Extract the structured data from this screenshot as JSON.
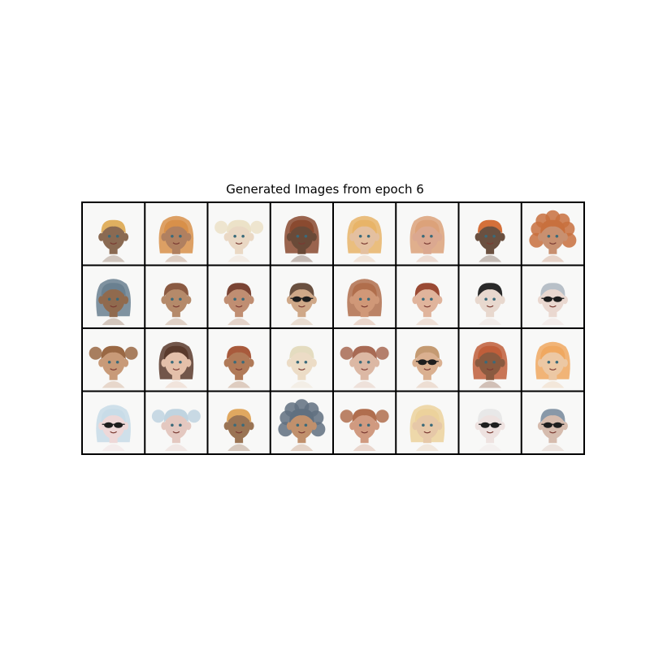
{
  "figure": {
    "title": "Generated Images from epoch 6",
    "rows": 4,
    "cols": 8
  },
  "cells": [
    {
      "skin": "#8a6a52",
      "hair": "#e0b060",
      "style": "short",
      "glasses": false
    },
    {
      "skin": "#b08060",
      "hair": "#d8904a",
      "style": "long",
      "glasses": false
    },
    {
      "skin": "#ead8c4",
      "hair": "#ece2c8",
      "style": "puffs",
      "glasses": false
    },
    {
      "skin": "#6a4a38",
      "hair": "#8a4a30",
      "style": "long",
      "glasses": false
    },
    {
      "skin": "#e4c0a0",
      "hair": "#e8b468",
      "style": "long",
      "glasses": false
    },
    {
      "skin": "#dba890",
      "hair": "#dca27a",
      "style": "long",
      "glasses": false
    },
    {
      "skin": "#6a5040",
      "hair": "#d4703a",
      "style": "short",
      "glasses": false
    },
    {
      "skin": "#c89070",
      "hair": "#c8703e",
      "style": "curly",
      "glasses": false
    },
    {
      "skin": "#906a4e",
      "hair": "#6a8090",
      "style": "long",
      "glasses": false
    },
    {
      "skin": "#b58a6a",
      "hair": "#8a5a42",
      "style": "short",
      "glasses": false
    },
    {
      "skin": "#c08e72",
      "hair": "#7a4434",
      "style": "short",
      "glasses": false
    },
    {
      "skin": "#cfa888",
      "hair": "#6a5040",
      "style": "short",
      "glasses": true
    },
    {
      "skin": "#d09878",
      "hair": "#b06e4c",
      "style": "long",
      "glasses": false
    },
    {
      "skin": "#e0b49c",
      "hair": "#9a4a34",
      "style": "short",
      "glasses": false
    },
    {
      "skin": "#e8d8ce",
      "hair": "#2a2a2a",
      "style": "short",
      "glasses": false
    },
    {
      "skin": "#ead8d0",
      "hair": "#b8c0c8",
      "style": "short",
      "glasses": true
    },
    {
      "skin": "#c89a78",
      "hair": "#9a6844",
      "style": "puffs",
      "glasses": false
    },
    {
      "skin": "#e4c0aa",
      "hair": "#5a3a2c",
      "style": "long",
      "glasses": false
    },
    {
      "skin": "#b07a58",
      "hair": "#a85a3c",
      "style": "short",
      "glasses": false
    },
    {
      "skin": "#ecdcc6",
      "hair": "#e4dcc0",
      "style": "short",
      "glasses": false
    },
    {
      "skin": "#dcb8a4",
      "hair": "#a86a54",
      "style": "puffs",
      "glasses": false
    },
    {
      "skin": "#dab090",
      "hair": "#c49a72",
      "style": "short",
      "glasses": true
    },
    {
      "skin": "#8a5a40",
      "hair": "#c05e3a",
      "style": "long",
      "glasses": false
    },
    {
      "skin": "#ecc8a4",
      "hair": "#f0a860",
      "style": "long",
      "glasses": false
    },
    {
      "skin": "#eed8d8",
      "hair": "#c8dce8",
      "style": "long",
      "glasses": true
    },
    {
      "skin": "#e4c8c0",
      "hair": "#c0d4e0",
      "style": "puffs",
      "glasses": false
    },
    {
      "skin": "#9a7454",
      "hair": "#e0a860",
      "style": "short",
      "glasses": false
    },
    {
      "skin": "#c0906c",
      "hair": "#607080",
      "style": "curly",
      "glasses": false
    },
    {
      "skin": "#d09a80",
      "hair": "#b06e4e",
      "style": "puffs",
      "glasses": false
    },
    {
      "skin": "#e6c8a8",
      "hair": "#ecd29c",
      "style": "long",
      "glasses": false
    },
    {
      "skin": "#eee2e0",
      "hair": "#e8e8e8",
      "style": "short",
      "glasses": true
    },
    {
      "skin": "#d6bcae",
      "hair": "#8898a8",
      "style": "short",
      "glasses": true
    }
  ]
}
